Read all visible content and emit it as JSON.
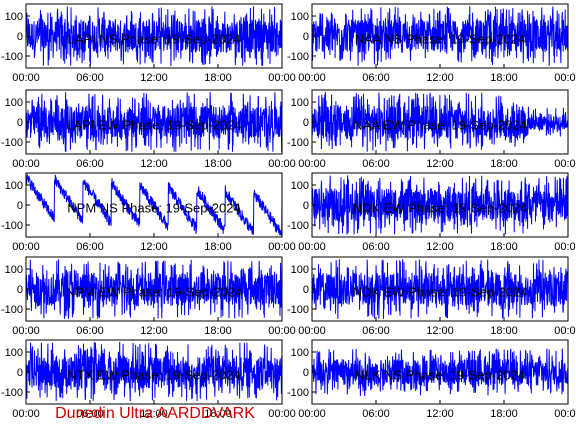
{
  "footer": {
    "text": "Dunedin Ultra AARDDVARK",
    "color": "#d40000"
  },
  "colors": {
    "trace": "#0000ff",
    "axes": "#000000",
    "background": "#ffffff"
  },
  "chart_data": [
    {
      "type": "line",
      "title": "LAPI NS Phase: 19-Sep-2024",
      "xlim": [
        "00:00",
        "24:00"
      ],
      "ylim": [
        -160,
        160
      ],
      "xticks": [
        "00:00",
        "06:00",
        "12:00",
        "18:00",
        "00:00"
      ],
      "yticks": [
        "100",
        "0",
        "-100"
      ],
      "series": [
        {
          "amplitude": 150,
          "pattern": "dense oscillation between about -150 and 150 for the whole day"
        }
      ]
    },
    {
      "type": "line",
      "title": "NAA NS Phase: 19-Sep-2024",
      "xlim": [
        "00:00",
        "24:00"
      ],
      "ylim": [
        -160,
        160
      ],
      "xticks": [
        "00:00",
        "06:00",
        "12:00",
        "18:00",
        "00:00"
      ],
      "yticks": [
        "100",
        "0",
        "-100"
      ],
      "series": [
        {
          "amplitude": 150,
          "pattern": "dense oscillation between about -150 and 150 for the whole day"
        }
      ]
    },
    {
      "type": "line",
      "title": "LAPI EW Phase: 19-Sep-2024",
      "xlim": [
        "00:00",
        "24:00"
      ],
      "ylim": [
        -160,
        160
      ],
      "xticks": [
        "00:00",
        "06:00",
        "12:00",
        "18:00",
        "00:00"
      ],
      "yticks": [
        "100",
        "0",
        "-100"
      ],
      "series": [
        {
          "amplitude": 150,
          "pattern": "dense oscillation between about -150 and 150 for the whole day"
        }
      ]
    },
    {
      "type": "line",
      "title": "NAA EW Phase: 19-Sep-2024",
      "xlim": [
        "00:00",
        "24:00"
      ],
      "ylim": [
        -160,
        160
      ],
      "xticks": [
        "00:00",
        "06:00",
        "12:00",
        "18:00",
        "00:00"
      ],
      "yticks": [
        "100",
        "0",
        "-100"
      ],
      "series": [
        {
          "amplitude": 150,
          "pattern": "dense oscillation, quieter in the final hours"
        }
      ]
    },
    {
      "type": "line",
      "title": "NPM NS Phase: 19-Sep-2024",
      "xlim": [
        "00:00",
        "24:00"
      ],
      "ylim": [
        -160,
        160
      ],
      "xticks": [
        "00:00",
        "06:00",
        "12:00",
        "18:00",
        "00:00"
      ],
      "yticks": [
        "100",
        "0",
        "-100"
      ],
      "series": [
        {
          "amplitude": 150,
          "pattern": "sawtooth phase wraps drifting downward, reaching about -150 near 23:00"
        }
      ]
    },
    {
      "type": "line",
      "title": "NDK EW Phase: 19-Sep-2024",
      "xlim": [
        "00:00",
        "24:00"
      ],
      "ylim": [
        -160,
        160
      ],
      "xticks": [
        "00:00",
        "06:00",
        "12:00",
        "18:00",
        "00:00"
      ],
      "yticks": [
        "100",
        "0",
        "-100"
      ],
      "series": [
        {
          "amplitude": 150,
          "pattern": "dense oscillation between about -150 and 150 for the whole day"
        }
      ]
    },
    {
      "type": "line",
      "title": "NPM EW Phase: 19-Sep-2024",
      "xlim": [
        "00:00",
        "24:00"
      ],
      "ylim": [
        -160,
        160
      ],
      "xticks": [
        "00:00",
        "06:00",
        "12:00",
        "18:00",
        "00:00"
      ],
      "yticks": [
        "100",
        "0",
        "-100"
      ],
      "series": [
        {
          "amplitude": 150,
          "pattern": "dense oscillation between about -150 and 150 for the whole day"
        }
      ]
    },
    {
      "type": "line",
      "title": "NDK EW Phase: 19-Sep-2024",
      "xlim": [
        "00:00",
        "24:00"
      ],
      "ylim": [
        -160,
        160
      ],
      "xticks": [
        "00:00",
        "06:00",
        "12:00",
        "18:00",
        "00:00"
      ],
      "yticks": [
        "100",
        "0",
        "-100"
      ],
      "series": [
        {
          "amplitude": 150,
          "pattern": "dense oscillation between about -150 and 150 for the whole day"
        }
      ]
    },
    {
      "type": "line",
      "title": "NTX EW Phase: 19-Sep-2024",
      "xlim": [
        "00:00",
        "24:00"
      ],
      "ylim": [
        -160,
        160
      ],
      "xticks": [
        "00:00",
        "06:00",
        "12:00",
        "18:00",
        "00:00"
      ],
      "yticks": [
        "100",
        "0",
        "-100"
      ],
      "series": [
        {
          "amplitude": 150,
          "pattern": "dense oscillation between about -150 and 150 for the whole day"
        }
      ]
    },
    {
      "type": "line",
      "title": "NLK NS Phase: 19-Sep-2024",
      "xlim": [
        "00:00",
        "24:00"
      ],
      "ylim": [
        -160,
        160
      ],
      "xticks": [
        "00:00",
        "06:00",
        "12:00",
        "18:00",
        "00:00"
      ],
      "yticks": [
        "100",
        "0",
        "-100"
      ],
      "series": [
        {
          "amplitude": 120,
          "pattern": "moderate oscillation mostly between about -120 and 120"
        }
      ]
    }
  ]
}
